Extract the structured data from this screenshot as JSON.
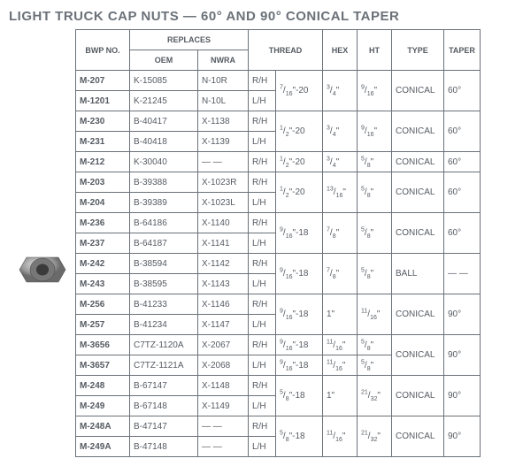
{
  "title": "LIGHT TRUCK CAP NUTS — 60° AND 90° CONICAL TAPER",
  "headers": {
    "bwp": "BWP NO.",
    "replaces": "REPLACES",
    "oem": "OEM",
    "nwra": "NWRA",
    "thread": "THREAD",
    "hex": "HEX",
    "ht": "HT",
    "type": "TYPE",
    "taper": "TAPER"
  },
  "rows": [
    {
      "bwp": "M-207",
      "oem": "K-15085",
      "nwra": "N-10R",
      "hand": "R/H",
      "thread": "7/16\"-20",
      "hex": "3/4\"",
      "ht": "9/16\"",
      "type": "CONICAL",
      "taper": "60°",
      "tspan": 2,
      "xspan": 2,
      "hspan": 2,
      "yspan": 2,
      "ptspan": 2
    },
    {
      "bwp": "M-1201",
      "oem": "K-21245",
      "nwra": "N-10L",
      "hand": "L/H"
    },
    {
      "bwp": "M-230",
      "oem": "B-40417",
      "nwra": "X-1138",
      "hand": "R/H",
      "thread": "1/2\"-20",
      "hex": "3/4\"",
      "ht": "9/16\"",
      "type": "CONICAL",
      "taper": "60°",
      "tspan": 2,
      "xspan": 2,
      "hspan": 2,
      "yspan": 2,
      "ptspan": 2
    },
    {
      "bwp": "M-231",
      "oem": "B-40418",
      "nwra": "X-1139",
      "hand": "L/H"
    },
    {
      "bwp": "M-212",
      "oem": "K-30040",
      "nwra": "— —",
      "hand": "R/H",
      "thread": "1/2\"-20",
      "hex": "3/4\"",
      "ht": "5/8\"",
      "type": "CONICAL",
      "taper": "60°",
      "tspan": 1,
      "xspan": 1,
      "hspan": 1,
      "yspan": 1,
      "ptspan": 1
    },
    {
      "bwp": "M-203",
      "oem": "B-39388",
      "nwra": "X-1023R",
      "hand": "R/H",
      "thread": "1/2\"-20",
      "hex": "13/16\"",
      "ht": "5/8\"",
      "type": "CONICAL",
      "taper": "60°",
      "tspan": 2,
      "xspan": 2,
      "hspan": 2,
      "yspan": 2,
      "ptspan": 2
    },
    {
      "bwp": "M-204",
      "oem": "B-39389",
      "nwra": "X-1023L",
      "hand": "L/H"
    },
    {
      "bwp": "M-236",
      "oem": "B-64186",
      "nwra": "X-1140",
      "hand": "R/H",
      "thread": "9/16\"-18",
      "hex": "7/8\"",
      "ht": "5/8\"",
      "type": "CONICAL",
      "taper": "60°",
      "tspan": 2,
      "xspan": 2,
      "hspan": 2,
      "yspan": 2,
      "ptspan": 2
    },
    {
      "bwp": "M-237",
      "oem": "B-64187",
      "nwra": "X-1141",
      "hand": "L/H"
    },
    {
      "bwp": "M-242",
      "oem": "B-38594",
      "nwra": "X-1142",
      "hand": "R/H",
      "thread": "9/16\"-18",
      "hex": "7/8\"",
      "ht": "5/8\"",
      "type": "BALL",
      "taper": "— —",
      "tspan": 2,
      "xspan": 2,
      "hspan": 2,
      "yspan": 2,
      "ptspan": 2
    },
    {
      "bwp": "M-243",
      "oem": "B-38595",
      "nwra": "X-1143",
      "hand": "L/H"
    },
    {
      "bwp": "M-256",
      "oem": "B-41233",
      "nwra": "X-1146",
      "hand": "R/H",
      "thread": "9/16\"-18",
      "hex": "1\"",
      "ht": "11/16\"",
      "type": "CONICAL",
      "taper": "90°",
      "tspan": 2,
      "xspan": 2,
      "hspan": 2,
      "yspan": 2,
      "ptspan": 2
    },
    {
      "bwp": "M-257",
      "oem": "B-41234",
      "nwra": "X-1147",
      "hand": "L/H"
    },
    {
      "bwp": "M-3656",
      "oem": "C7TZ-1120A",
      "nwra": "X-2067",
      "hand": "R/H",
      "thread": "9/16\"-18",
      "hex": "11/16\"",
      "ht": "5/8\"",
      "type": "CONICAL",
      "taper": "90°",
      "tspan": 1,
      "xspan": 1,
      "hspan": 1,
      "yspan": 2,
      "ptspan": 2
    },
    {
      "bwp": "M-3657",
      "oem": "C7TZ-1121A",
      "nwra": "X-2068",
      "hand": "L/H",
      "thread": "9/16\"-18",
      "hex": "11/16\"",
      "ht": "5/8\"",
      "tspan": 1,
      "xspan": 1,
      "hspan": 1
    },
    {
      "bwp": "M-248",
      "oem": "B-67147",
      "nwra": "X-1148",
      "hand": "R/H",
      "thread": "5/8\"-18",
      "hex": "1\"",
      "ht": "21/32\"",
      "type": "CONICAL",
      "taper": "90°",
      "tspan": 2,
      "xspan": 2,
      "hspan": 2,
      "yspan": 2,
      "ptspan": 2
    },
    {
      "bwp": "M-249",
      "oem": "B-67148",
      "nwra": "X-1149",
      "hand": "L/H"
    },
    {
      "bwp": "M-248A",
      "oem": "B-47147",
      "nwra": "— —",
      "hand": "R/H",
      "thread": "5/8\"-18",
      "hex": "11/16\"",
      "ht": "21/32\"",
      "type": "CONICAL",
      "taper": "90°",
      "tspan": 2,
      "xspan": 2,
      "hspan": 2,
      "yspan": 2,
      "ptspan": 2
    },
    {
      "bwp": "M-249A",
      "oem": "B-47148",
      "nwra": "— —",
      "hand": "L/H"
    }
  ]
}
